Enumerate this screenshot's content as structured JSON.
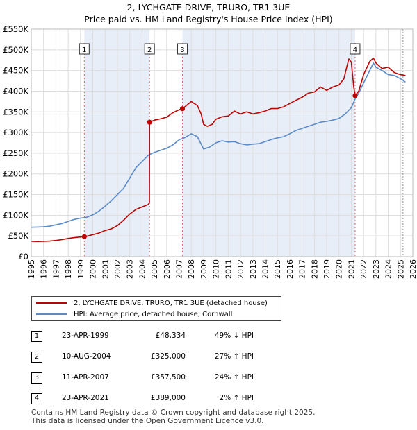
{
  "title_line1": "2, LYCHGATE DRIVE, TRURO, TR1 3UE",
  "title_line2": "Price paid vs. HM Land Registry's House Price Index (HPI)",
  "legend": {
    "property_label": "2, LYCHGATE DRIVE, TRURO, TR1 3UE (detached house)",
    "hpi_label": "HPI: Average price, detached house, Cornwall"
  },
  "colors": {
    "property": "#c00000",
    "hpi": "#5b8ac8",
    "shade": "#e8eef8",
    "grid": "#dddddd"
  },
  "sales": [
    {
      "num": "1",
      "date": "23-APR-1999",
      "price": "£48,334",
      "hpi": "49% ↓ HPI"
    },
    {
      "num": "2",
      "date": "10-AUG-2004",
      "price": "£325,000",
      "hpi": "27% ↑ HPI"
    },
    {
      "num": "3",
      "date": "11-APR-2007",
      "price": "£357,500",
      "hpi": "24% ↑ HPI"
    },
    {
      "num": "4",
      "date": "23-APR-2021",
      "price": "£389,000",
      "hpi": "2% ↑ HPI"
    }
  ],
  "footer_line1": "Contains HM Land Registry data © Crown copyright and database right 2025.",
  "footer_line2": "This data is licensed under the Open Government Licence v3.0.",
  "chart_data": {
    "type": "line",
    "title": "2, LYCHGATE DRIVE, TRURO, TR1 3UE",
    "subtitle": "Price paid vs. HM Land Registry's House Price Index (HPI)",
    "xlabel": "",
    "ylabel": "",
    "xlim": [
      1995,
      2026
    ],
    "ylim": [
      0,
      550000
    ],
    "x_ticks": [
      1995,
      1996,
      1997,
      1998,
      1999,
      2000,
      2001,
      2002,
      2003,
      2004,
      2005,
      2006,
      2007,
      2008,
      2009,
      2010,
      2011,
      2012,
      2013,
      2014,
      2015,
      2016,
      2017,
      2018,
      2019,
      2020,
      2021,
      2022,
      2023,
      2024,
      2025,
      2026
    ],
    "y_ticks": [
      {
        "value": 0,
        "label": "£0"
      },
      {
        "value": 50000,
        "label": "£50K"
      },
      {
        "value": 100000,
        "label": "£100K"
      },
      {
        "value": 150000,
        "label": "£150K"
      },
      {
        "value": 200000,
        "label": "£200K"
      },
      {
        "value": 250000,
        "label": "£250K"
      },
      {
        "value": 300000,
        "label": "£300K"
      },
      {
        "value": 350000,
        "label": "£350K"
      },
      {
        "value": 400000,
        "label": "£400K"
      },
      {
        "value": 450000,
        "label": "£450K"
      },
      {
        "value": 500000,
        "label": "£500K"
      },
      {
        "value": 550000,
        "label": "£550K"
      }
    ],
    "grid": true,
    "shaded_periods": [
      [
        1999.31,
        2004.61
      ],
      [
        2007.28,
        2021.31
      ]
    ],
    "forecast_start": 2025.2,
    "markers": [
      {
        "label": "1",
        "x": 1999.31,
        "y": 48334
      },
      {
        "label": "2",
        "x": 2004.61,
        "y": 325000
      },
      {
        "label": "3",
        "x": 2007.28,
        "y": 357500
      },
      {
        "label": "4",
        "x": 2021.31,
        "y": 389000
      }
    ],
    "series": [
      {
        "name": "2, LYCHGATE DRIVE, TRURO, TR1 3UE (detached house)",
        "color": "#c00000",
        "points": [
          [
            1995.0,
            37000
          ],
          [
            1995.5,
            36500
          ],
          [
            1996.0,
            37000
          ],
          [
            1996.5,
            37500
          ],
          [
            1997.0,
            39000
          ],
          [
            1997.5,
            41000
          ],
          [
            1998.0,
            44000
          ],
          [
            1998.5,
            46000
          ],
          [
            1999.0,
            47500
          ],
          [
            1999.31,
            48334
          ],
          [
            1999.6,
            50000
          ],
          [
            2000.0,
            53000
          ],
          [
            2000.5,
            57000
          ],
          [
            2001.0,
            63000
          ],
          [
            2001.5,
            67000
          ],
          [
            2002.0,
            75000
          ],
          [
            2002.5,
            88000
          ],
          [
            2003.0,
            103000
          ],
          [
            2003.5,
            114000
          ],
          [
            2004.0,
            120000
          ],
          [
            2004.5,
            126000
          ],
          [
            2004.6,
            130000
          ],
          [
            2004.61,
            325000
          ],
          [
            2005.0,
            330000
          ],
          [
            2005.5,
            333000
          ],
          [
            2006.0,
            337000
          ],
          [
            2006.5,
            348000
          ],
          [
            2007.0,
            355000
          ],
          [
            2007.28,
            357500
          ],
          [
            2007.6,
            365000
          ],
          [
            2008.0,
            375000
          ],
          [
            2008.5,
            365000
          ],
          [
            2008.8,
            345000
          ],
          [
            2009.0,
            320000
          ],
          [
            2009.3,
            315000
          ],
          [
            2009.7,
            320000
          ],
          [
            2010.0,
            332000
          ],
          [
            2010.5,
            338000
          ],
          [
            2011.0,
            340000
          ],
          [
            2011.5,
            352000
          ],
          [
            2012.0,
            345000
          ],
          [
            2012.5,
            350000
          ],
          [
            2013.0,
            345000
          ],
          [
            2013.5,
            348000
          ],
          [
            2014.0,
            352000
          ],
          [
            2014.5,
            358000
          ],
          [
            2015.0,
            358000
          ],
          [
            2015.5,
            362000
          ],
          [
            2016.0,
            370000
          ],
          [
            2016.5,
            378000
          ],
          [
            2017.0,
            385000
          ],
          [
            2017.5,
            395000
          ],
          [
            2018.0,
            398000
          ],
          [
            2018.5,
            410000
          ],
          [
            2019.0,
            402000
          ],
          [
            2019.5,
            410000
          ],
          [
            2020.0,
            415000
          ],
          [
            2020.4,
            430000
          ],
          [
            2020.6,
            455000
          ],
          [
            2020.8,
            478000
          ],
          [
            2021.0,
            470000
          ],
          [
            2021.2,
            410000
          ],
          [
            2021.31,
            389000
          ],
          [
            2021.6,
            400000
          ],
          [
            2022.0,
            440000
          ],
          [
            2022.5,
            472000
          ],
          [
            2022.8,
            480000
          ],
          [
            2023.0,
            468000
          ],
          [
            2023.5,
            455000
          ],
          [
            2024.0,
            458000
          ],
          [
            2024.5,
            445000
          ],
          [
            2025.0,
            440000
          ],
          [
            2025.4,
            438000
          ]
        ]
      },
      {
        "name": "HPI: Average price, detached house, Cornwall",
        "color": "#5b8ac8",
        "points": [
          [
            1995.0,
            71000
          ],
          [
            1995.5,
            71500
          ],
          [
            1996.0,
            72000
          ],
          [
            1996.5,
            73500
          ],
          [
            1997.0,
            77000
          ],
          [
            1997.5,
            80000
          ],
          [
            1998.0,
            85000
          ],
          [
            1998.5,
            90000
          ],
          [
            1999.0,
            93000
          ],
          [
            1999.5,
            95000
          ],
          [
            2000.0,
            101000
          ],
          [
            2000.5,
            110000
          ],
          [
            2001.0,
            122000
          ],
          [
            2001.5,
            135000
          ],
          [
            2002.0,
            150000
          ],
          [
            2002.5,
            165000
          ],
          [
            2003.0,
            190000
          ],
          [
            2003.5,
            215000
          ],
          [
            2004.0,
            230000
          ],
          [
            2004.5,
            245000
          ],
          [
            2005.0,
            252000
          ],
          [
            2005.5,
            257000
          ],
          [
            2006.0,
            262000
          ],
          [
            2006.5,
            270000
          ],
          [
            2007.0,
            282000
          ],
          [
            2007.5,
            288000
          ],
          [
            2008.0,
            297000
          ],
          [
            2008.5,
            290000
          ],
          [
            2009.0,
            260000
          ],
          [
            2009.5,
            265000
          ],
          [
            2010.0,
            275000
          ],
          [
            2010.5,
            280000
          ],
          [
            2011.0,
            277000
          ],
          [
            2011.5,
            278000
          ],
          [
            2012.0,
            273000
          ],
          [
            2012.5,
            270000
          ],
          [
            2013.0,
            272000
          ],
          [
            2013.5,
            273000
          ],
          [
            2014.0,
            278000
          ],
          [
            2014.5,
            283000
          ],
          [
            2015.0,
            287000
          ],
          [
            2015.5,
            290000
          ],
          [
            2016.0,
            297000
          ],
          [
            2016.5,
            305000
          ],
          [
            2017.0,
            310000
          ],
          [
            2017.5,
            315000
          ],
          [
            2018.0,
            320000
          ],
          [
            2018.5,
            325000
          ],
          [
            2019.0,
            327000
          ],
          [
            2019.5,
            330000
          ],
          [
            2020.0,
            334000
          ],
          [
            2020.5,
            345000
          ],
          [
            2021.0,
            360000
          ],
          [
            2021.31,
            381000
          ],
          [
            2021.6,
            395000
          ],
          [
            2022.0,
            420000
          ],
          [
            2022.5,
            450000
          ],
          [
            2022.8,
            468000
          ],
          [
            2023.0,
            458000
          ],
          [
            2023.5,
            450000
          ],
          [
            2024.0,
            440000
          ],
          [
            2024.5,
            438000
          ],
          [
            2025.0,
            430000
          ],
          [
            2025.4,
            422000
          ]
        ]
      }
    ]
  }
}
